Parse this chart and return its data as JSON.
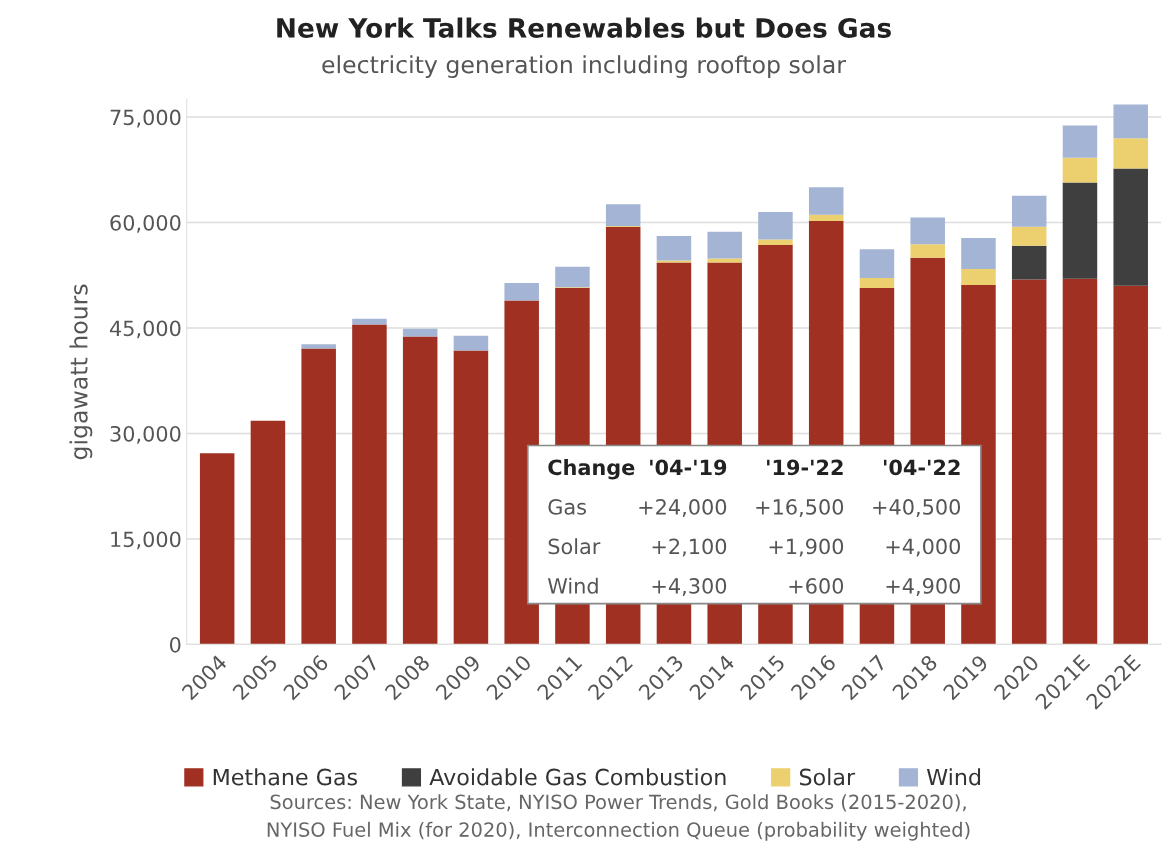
{
  "chart_data": {
    "type": "bar",
    "stacked": true,
    "title": "New York Talks Renewables but Does Gas",
    "subtitle": "electricity generation including rooftop solar",
    "ylabel": "gigawatt hours",
    "categories": [
      "2004",
      "2005",
      "2006",
      "2007",
      "2008",
      "2009",
      "2010",
      "2011",
      "2012",
      "2013",
      "2014",
      "2015",
      "2016",
      "2017",
      "2018",
      "2019",
      "2020",
      "2021E",
      "2022E"
    ],
    "series": [
      {
        "name": "Methane Gas",
        "color": "#a03022",
        "values": [
          27200,
          31800,
          42100,
          45500,
          43800,
          41800,
          48900,
          50700,
          59400,
          54300,
          54300,
          56800,
          60200,
          50700,
          55000,
          51100,
          51900,
          52000,
          51000
        ]
      },
      {
        "name": "Avoidable Gas Combustion",
        "color": "#3f3f3f",
        "values": [
          0,
          0,
          0,
          0,
          0,
          0,
          0,
          0,
          0,
          0,
          0,
          0,
          0,
          0,
          0,
          0,
          4800,
          13700,
          16700
        ]
      },
      {
        "name": "Solar",
        "color": "#ecd06f",
        "values": [
          0,
          0,
          0,
          0,
          0,
          0,
          0,
          100,
          100,
          300,
          600,
          800,
          900,
          1400,
          1900,
          2300,
          2700,
          3500,
          4300
        ]
      },
      {
        "name": "Wind",
        "color": "#a4b4d4",
        "values": [
          0,
          0,
          600,
          800,
          1100,
          2100,
          2500,
          2900,
          3100,
          3500,
          3800,
          3900,
          3900,
          4100,
          3800,
          4400,
          4400,
          4600,
          4800
        ]
      }
    ],
    "ylim": [
      0,
      77500
    ],
    "yticks": [
      0,
      {
        "value": 15000,
        "label": "15,000"
      },
      {
        "value": 30000,
        "label": "30,000"
      },
      {
        "value": 45000,
        "label": "45,000"
      },
      {
        "value": 60000,
        "label": "60,000"
      },
      {
        "value": 75000,
        "label": "75,000"
      }
    ],
    "grid": "y",
    "legend": "bottom",
    "annotations": [
      "Change",
      "'04-'19",
      "'19-'22",
      "'04-'22",
      "Gas",
      "+24,000",
      "+16,500",
      "+40,500",
      "Solar",
      "+2,100",
      "+1,900",
      "+4,000",
      "Wind",
      "+4,300",
      "+600",
      "+4,900",
      "Sources: New York State, NYISO Power Trends, Gold Books (2015-2020),\nNYISO Fuel Mix (for 2020), Interconnection Queue (probability weighted)"
    ]
  }
}
